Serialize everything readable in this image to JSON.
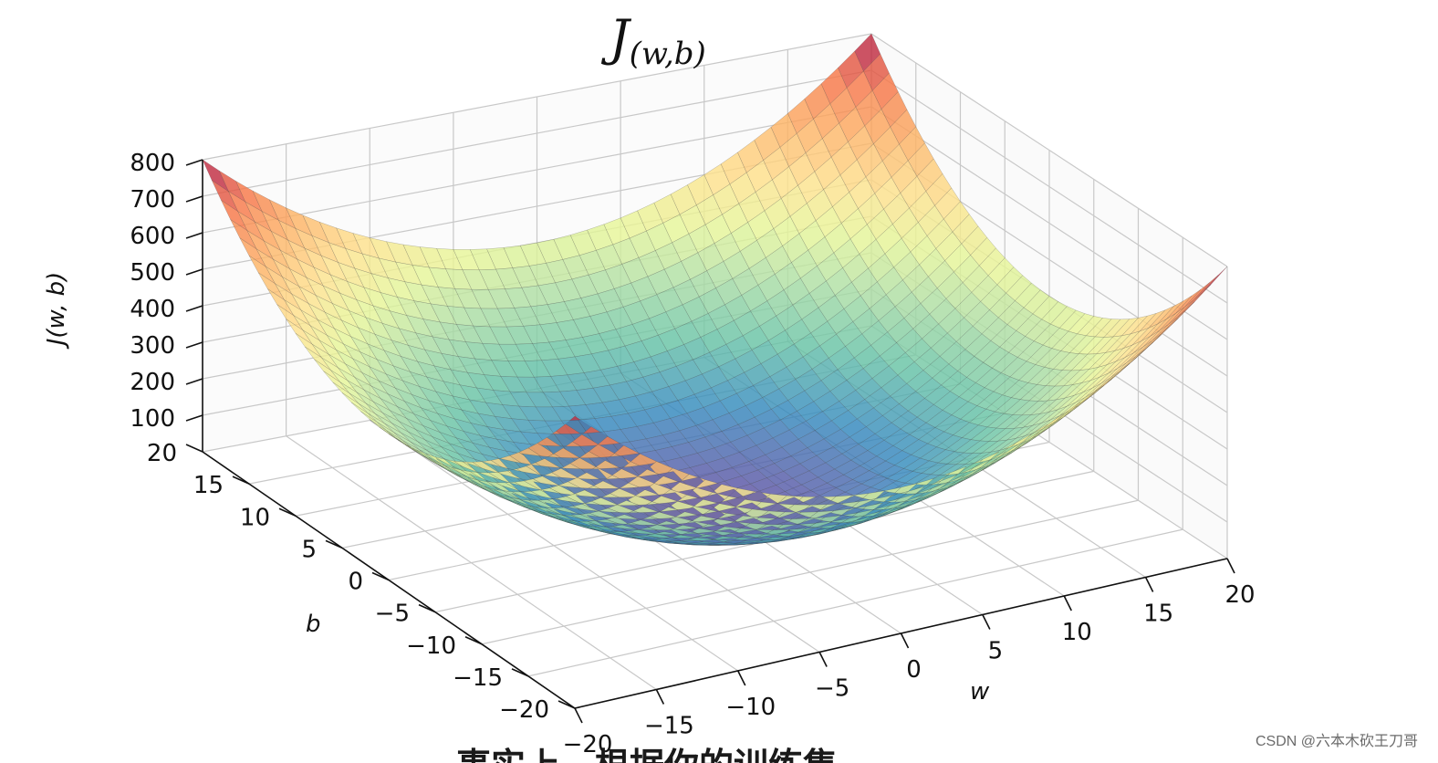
{
  "chart_data": {
    "type": "surface",
    "title_main": "J",
    "title_sub": "(w,b)",
    "zlabel": "J(w, b)",
    "xlabel": "w",
    "ylabel": "b",
    "xlim": [
      -20,
      20
    ],
    "ylim": [
      -20,
      20
    ],
    "zlim": [
      0,
      800
    ],
    "x_ticks": [
      "−20",
      "−15",
      "−10",
      "−5",
      "0",
      "5",
      "10",
      "15",
      "20"
    ],
    "y_ticks": [
      "−20",
      "−15",
      "−10",
      "−5",
      "0",
      "5",
      "10",
      "15",
      "20"
    ],
    "z_ticks": [
      "100",
      "200",
      "300",
      "400",
      "500",
      "600",
      "700",
      "800"
    ],
    "function": "J = w^2 + b^2",
    "colormap": "Spectral_r",
    "grid": true
  },
  "subtitle_text": "事实上，根据你的训练集",
  "watermark": "CSDN @六本木砍王刀哥"
}
